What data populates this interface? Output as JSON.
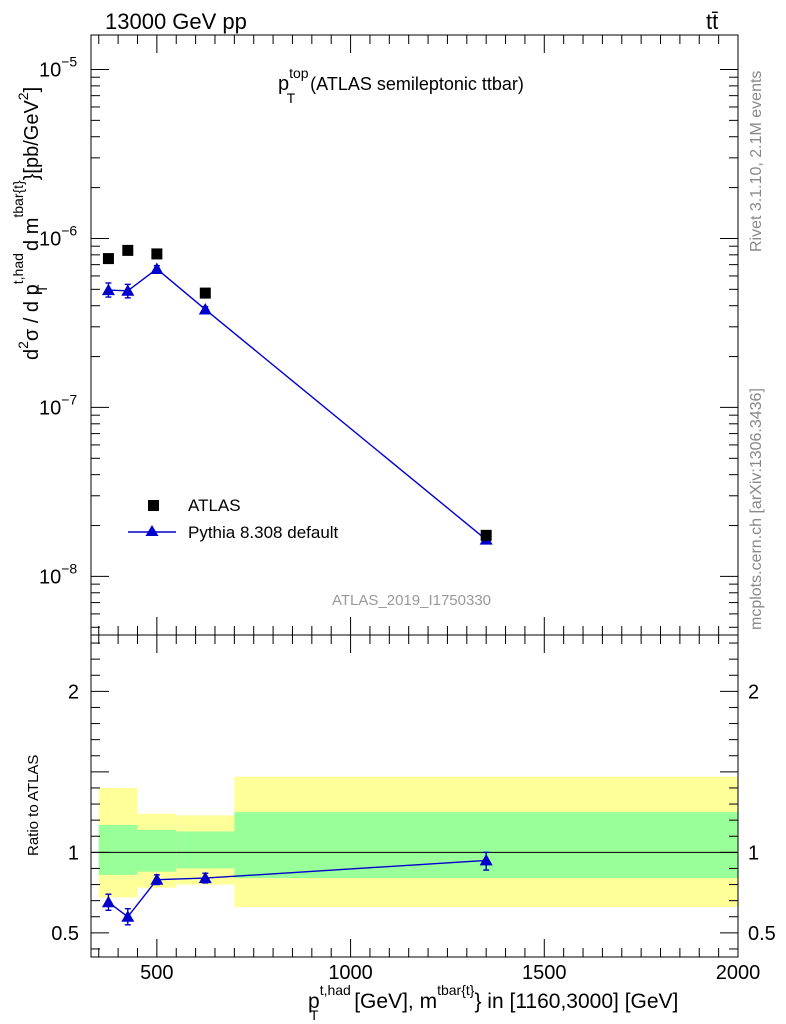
{
  "header": {
    "left": "13000 GeV pp",
    "right": "tt̄"
  },
  "side_labels": {
    "rivet": "Rivet 3.1.10,  2.1M events",
    "mcplots": "mcplots.cern.ch [arXiv:1306.3436]"
  },
  "colors": {
    "atlas": "#000000",
    "pythia": "#0000cc",
    "band_outer": "#ffff99",
    "band_inner": "#99ff99",
    "watermark": "#999999"
  },
  "chart_data": [
    {
      "type": "scatter",
      "panel": "main",
      "title_main": "p",
      "title_sup": "top",
      "title_sub": "T",
      "title_rest": " (ATLAS semileptonic ttbar)",
      "watermark": "ATLAS_2019_I1750330",
      "yscale": "log",
      "ylim": [
        4.5e-09,
        1.6e-05
      ],
      "xlim": [
        330,
        2000
      ],
      "ylabel": {
        "d2": "d",
        "sup2": "2",
        "sigma": "σ / d p",
        "sup_thad": "t,had",
        "sub_T": "T",
        "dm": " d m",
        "sup_tbar": "tbar{t}",
        "units": "}[pb/GeV",
        "sup_units": "2",
        "close": "]"
      },
      "yticks": [
        {
          "value": 1e-05,
          "base": "10",
          "exp": "−5"
        },
        {
          "value": 1e-06,
          "base": "10",
          "exp": "−6"
        },
        {
          "value": 1e-07,
          "base": "10",
          "exp": "−7"
        },
        {
          "value": 1e-08,
          "base": "10",
          "exp": "−8"
        }
      ],
      "legend_position": "bottom-left",
      "series": [
        {
          "name": "ATLAS",
          "marker": "square",
          "x": [
            375,
            425,
            500,
            625,
            1350
          ],
          "y": [
            7.6e-07,
            8.5e-07,
            8.1e-07,
            4.75e-07,
            1.75e-08
          ]
        },
        {
          "name": "Pythia 8.308 default",
          "marker": "triangle",
          "line": true,
          "x": [
            375,
            425,
            500,
            625,
            1350
          ],
          "y": [
            4.95e-07,
            4.9e-07,
            6.6e-07,
            3.8e-07,
            1.65e-08
          ],
          "yerr_low": [
            4.5e-07,
            4.45e-07,
            6.3e-07,
            3.65e-07,
            1.58e-08
          ],
          "yerr_high": [
            5.45e-07,
            5.35e-07,
            6.9e-07,
            3.95e-07,
            1.72e-08
          ]
        }
      ]
    },
    {
      "type": "line",
      "panel": "ratio",
      "ylabel": "Ratio to ATLAS",
      "ylim": [
        0.35,
        2.35
      ],
      "xlim": [
        330,
        2000
      ],
      "xlabel": {
        "p": "p",
        "sup_thad": "t,had",
        "sub_T": "T",
        "mid": " [GeV], m",
        "sup_tbar": "tbar{t}",
        "rest": "} in [1160,3000] [GeV]"
      },
      "xticks": [
        500,
        1000,
        1500,
        2000
      ],
      "xtick_labels": [
        "500",
        "1000",
        "1500",
        "2000"
      ],
      "yticks": [
        0.5,
        1,
        2
      ],
      "ytick_labels": [
        "0.5",
        "1",
        "2"
      ],
      "reference_line": 1,
      "bands": [
        {
          "x0": 350,
          "x1": 450,
          "outer": [
            0.72,
            1.4
          ],
          "inner": [
            0.86,
            1.17
          ]
        },
        {
          "x0": 450,
          "x1": 550,
          "outer": [
            0.78,
            1.24
          ],
          "inner": [
            0.88,
            1.14
          ]
        },
        {
          "x0": 550,
          "x1": 700,
          "outer": [
            0.8,
            1.23
          ],
          "inner": [
            0.9,
            1.13
          ]
        },
        {
          "x0": 700,
          "x1": 2000,
          "outer": [
            0.66,
            1.47
          ],
          "inner": [
            0.84,
            1.25
          ]
        }
      ],
      "series": [
        {
          "name": "Pythia 8.308 default / ATLAS",
          "x": [
            375,
            425,
            500,
            625,
            1350
          ],
          "y": [
            0.69,
            0.6,
            0.83,
            0.84,
            0.95
          ],
          "yerr_low": [
            0.64,
            0.55,
            0.8,
            0.81,
            0.89
          ],
          "yerr_high": [
            0.74,
            0.65,
            0.86,
            0.87,
            1.0
          ]
        }
      ]
    }
  ]
}
